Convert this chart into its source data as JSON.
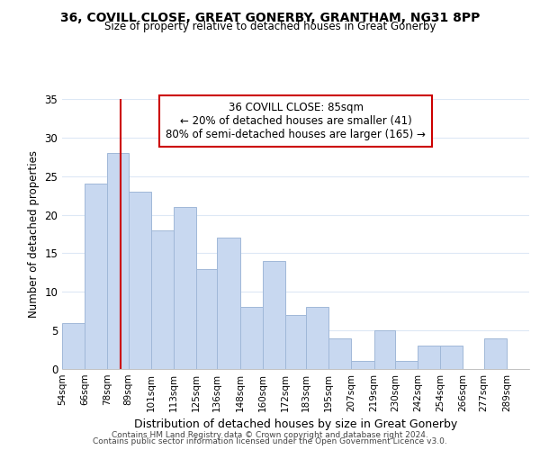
{
  "title": "36, COVILL CLOSE, GREAT GONERBY, GRANTHAM, NG31 8PP",
  "subtitle": "Size of property relative to detached houses in Great Gonerby",
  "xlabel": "Distribution of detached houses by size in Great Gonerby",
  "ylabel": "Number of detached properties",
  "bar_color": "#c8d8f0",
  "bar_edge_color": "#a0b8d8",
  "reference_line_x": 85,
  "reference_line_color": "#cc0000",
  "categories": [
    "54sqm",
    "66sqm",
    "78sqm",
    "89sqm",
    "101sqm",
    "113sqm",
    "125sqm",
    "136sqm",
    "148sqm",
    "160sqm",
    "172sqm",
    "183sqm",
    "195sqm",
    "207sqm",
    "219sqm",
    "230sqm",
    "242sqm",
    "254sqm",
    "266sqm",
    "277sqm",
    "289sqm"
  ],
  "values": [
    6,
    24,
    28,
    23,
    18,
    21,
    13,
    17,
    8,
    14,
    7,
    8,
    4,
    1,
    5,
    1,
    3,
    3,
    0,
    4,
    0
  ],
  "bin_edges": [
    54,
    66,
    78,
    89,
    101,
    113,
    125,
    136,
    148,
    160,
    172,
    183,
    195,
    207,
    219,
    230,
    242,
    254,
    266,
    277,
    289,
    301
  ],
  "ylim": [
    0,
    35
  ],
  "yticks": [
    0,
    5,
    10,
    15,
    20,
    25,
    30,
    35
  ],
  "annotation_title": "36 COVILL CLOSE: 85sqm",
  "annotation_line1": "← 20% of detached houses are smaller (41)",
  "annotation_line2": "80% of semi-detached houses are larger (165) →",
  "annotation_box_color": "#ffffff",
  "annotation_box_edge_color": "#cc0000",
  "footer_line1": "Contains HM Land Registry data © Crown copyright and database right 2024.",
  "footer_line2": "Contains public sector information licensed under the Open Government Licence v3.0.",
  "background_color": "#ffffff",
  "grid_color": "#dde8f5"
}
